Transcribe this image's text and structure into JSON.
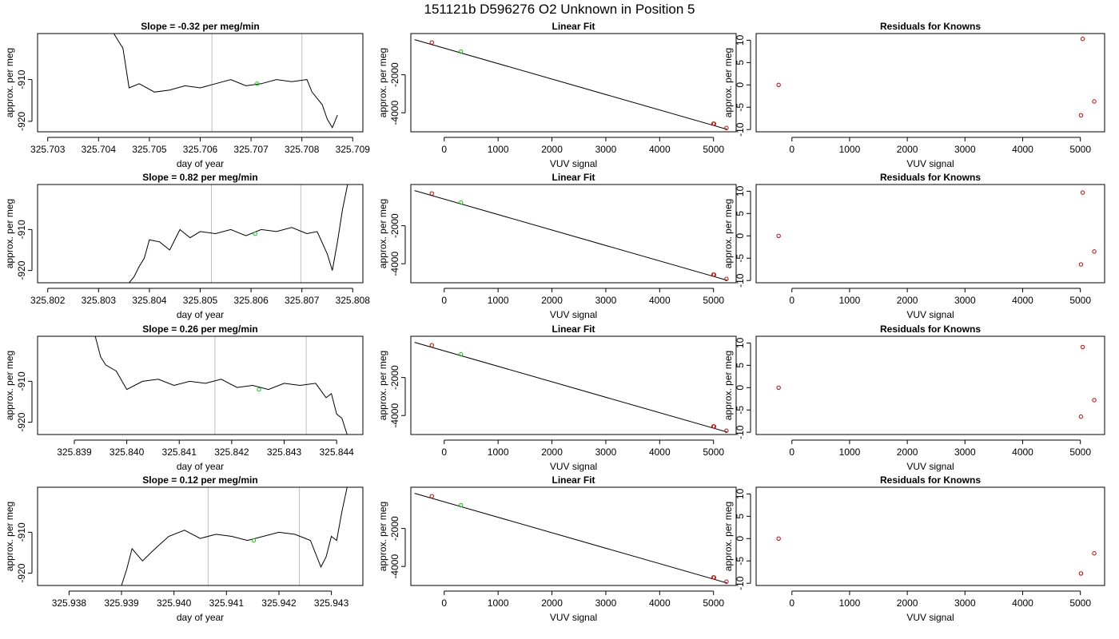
{
  "figure": {
    "title": "151121b      D596276   O2 Unknown in Position  5"
  },
  "colors": {
    "trace": "#000000",
    "unknown_point": "#00cc00",
    "known_point": "#cc0000",
    "vertical_marker": "#bebebe",
    "frame": "#000000"
  },
  "chart_data": [
    {
      "type": "line",
      "panel": "trace-1",
      "title": "Slope =  -0.32  per meg/min",
      "xlabel": "day of year",
      "ylabel": "approx. per meg",
      "xlim": [
        325.7028,
        325.7092
      ],
      "ylim": [
        -922.5,
        -899.0
      ],
      "xticks": [
        325.703,
        325.704,
        325.705,
        325.706,
        325.707,
        325.708,
        325.709
      ],
      "xtick_labels": [
        "325.703",
        "325.704",
        "325.705",
        "325.706",
        "325.707",
        "325.708",
        "325.709"
      ],
      "yticks": [
        -920,
        -910
      ],
      "ytick_labels": [
        "-920",
        "-910"
      ],
      "vlines": [
        325.70623,
        325.708
      ],
      "unknown_point": {
        "x": 325.70712,
        "y": -911.0
      },
      "series": [
        {
          "x": [
            325.7043,
            325.7044,
            325.70448,
            325.7046,
            325.7048,
            325.7051,
            325.7054,
            325.7057,
            325.706,
            325.7063,
            325.7066,
            325.7069,
            325.7072,
            325.7075,
            325.7078,
            325.7081,
            325.7082,
            325.7084,
            325.7085,
            325.7086,
            325.7087
          ],
          "y": [
            -899.0,
            -901.0,
            -902.5,
            -912.0,
            -911.0,
            -913.0,
            -912.5,
            -911.5,
            -912.0,
            -911.0,
            -910.0,
            -911.5,
            -911.0,
            -910.0,
            -910.5,
            -910.0,
            -913.0,
            -916.0,
            -919.5,
            -921.5,
            -918.5
          ]
        }
      ]
    },
    {
      "type": "scatter",
      "panel": "fit-1",
      "title": "Linear Fit",
      "xlabel": "VUV signal",
      "ylabel": "approx. per meg",
      "xlim": [
        -620,
        5420
      ],
      "ylim": [
        -5000,
        170
      ],
      "xticks": [
        0,
        1000,
        2000,
        3000,
        4000,
        5000
      ],
      "xtick_labels": [
        "0",
        "1000",
        "2000",
        "3000",
        "4000",
        "5000"
      ],
      "yticks": [
        -4000,
        -2000
      ],
      "ytick_labels": [
        "-4000",
        "-2000"
      ],
      "fit_line": {
        "x": [
          -550,
          5250
        ],
        "y": [
          -150,
          -4870
        ]
      },
      "known_points": {
        "x": [
          -230,
          5000,
          5010,
          5240
        ],
        "y": [
          -300,
          -4570,
          -4580,
          -4800
        ]
      },
      "unknown_points": {
        "x": [
          310
        ],
        "y": [
          -780
        ]
      }
    },
    {
      "type": "scatter",
      "panel": "resid-1",
      "title": "Residuals for Knowns",
      "xlabel": "VUV signal",
      "ylabel": "approx. per meg",
      "xlim": [
        -620,
        5420
      ],
      "ylim": [
        -10.5,
        11.5
      ],
      "xticks": [
        0,
        1000,
        2000,
        3000,
        4000,
        5000
      ],
      "xtick_labels": [
        "0",
        "1000",
        "2000",
        "3000",
        "4000",
        "5000"
      ],
      "yticks": [
        -10,
        -5,
        0,
        5,
        10
      ],
      "ytick_labels": [
        "-10",
        "-5",
        "0",
        "5",
        "10"
      ],
      "known_points": {
        "x": [
          -230,
          5010,
          5040,
          5240
        ],
        "y": [
          0,
          -6.8,
          10.3,
          -3.7
        ]
      }
    },
    {
      "type": "line",
      "panel": "trace-2",
      "title": "Slope =  0.82  per meg/min",
      "xlabel": "day of year",
      "ylabel": "approx. per meg",
      "xlim": [
        325.8018,
        325.8082
      ],
      "ylim": [
        -923.0,
        -899.0
      ],
      "xticks": [
        325.802,
        325.803,
        325.804,
        325.805,
        325.806,
        325.807,
        325.808
      ],
      "xtick_labels": [
        "325.802",
        "325.803",
        "325.804",
        "325.805",
        "325.806",
        "325.807",
        "325.808"
      ],
      "yticks": [
        -920,
        -910
      ],
      "ytick_labels": [
        "-920",
        "-910"
      ],
      "vlines": [
        325.80522,
        325.80698
      ],
      "unknown_point": {
        "x": 325.80608,
        "y": -911.0
      },
      "series": [
        {
          "x": [
            325.8036,
            325.8037,
            325.8038,
            325.8039,
            325.804,
            325.8042,
            325.8044,
            325.8046,
            325.8048,
            325.805,
            325.8053,
            325.8056,
            325.8059,
            325.8062,
            325.8065,
            325.8068,
            325.8071,
            325.8073,
            325.8075,
            325.8076,
            325.8077,
            325.8078,
            325.8079
          ],
          "y": [
            -923.0,
            -921.5,
            -919.0,
            -917.0,
            -912.5,
            -913.0,
            -915.0,
            -910.0,
            -912.0,
            -910.5,
            -911.0,
            -910.0,
            -911.5,
            -910.0,
            -910.5,
            -909.5,
            -911.0,
            -910.5,
            -916.0,
            -920.0,
            -913.0,
            -905.0,
            -899.0
          ]
        }
      ]
    },
    {
      "type": "scatter",
      "panel": "fit-2",
      "title": "Linear Fit",
      "xlabel": "VUV signal",
      "ylabel": "approx. per meg",
      "xlim": [
        -620,
        5420
      ],
      "ylim": [
        -5000,
        170
      ],
      "xticks": [
        0,
        1000,
        2000,
        3000,
        4000,
        5000
      ],
      "xtick_labels": [
        "0",
        "1000",
        "2000",
        "3000",
        "4000",
        "5000"
      ],
      "yticks": [
        -4000,
        -2000
      ],
      "ytick_labels": [
        "-4000",
        "-2000"
      ],
      "fit_line": {
        "x": [
          -550,
          5250
        ],
        "y": [
          -150,
          -4870
        ]
      },
      "known_points": {
        "x": [
          -230,
          5000,
          5010,
          5240
        ],
        "y": [
          -300,
          -4570,
          -4580,
          -4800
        ]
      },
      "unknown_points": {
        "x": [
          310
        ],
        "y": [
          -780
        ]
      }
    },
    {
      "type": "scatter",
      "panel": "resid-2",
      "title": "Residuals for Knowns",
      "xlabel": "VUV signal",
      "ylabel": "approx. per meg",
      "xlim": [
        -620,
        5420
      ],
      "ylim": [
        -10.5,
        11.5
      ],
      "xticks": [
        0,
        1000,
        2000,
        3000,
        4000,
        5000
      ],
      "xtick_labels": [
        "0",
        "1000",
        "2000",
        "3000",
        "4000",
        "5000"
      ],
      "yticks": [
        -10,
        -5,
        0,
        5,
        10
      ],
      "ytick_labels": [
        "-10",
        "-5",
        "0",
        "5",
        "10"
      ],
      "known_points": {
        "x": [
          -230,
          5010,
          5040,
          5240
        ],
        "y": [
          0,
          -6.4,
          9.7,
          -3.5
        ]
      }
    },
    {
      "type": "line",
      "panel": "trace-3",
      "title": "Slope =  0.26  per meg/min",
      "xlabel": "day of year",
      "ylabel": "approx. per meg",
      "xlim": [
        325.8383,
        325.8445
      ],
      "ylim": [
        -923.0,
        -899.0
      ],
      "xticks": [
        325.839,
        325.84,
        325.841,
        325.842,
        325.843,
        325.844
      ],
      "xtick_labels": [
        "325.839",
        "325.840",
        "325.841",
        "325.842",
        "325.843",
        "325.844"
      ],
      "yticks": [
        -920,
        -910
      ],
      "ytick_labels": [
        "-920",
        "-910"
      ],
      "vlines": [
        325.84168,
        325.84342
      ],
      "unknown_point": {
        "x": 325.84252,
        "y": -912.0
      },
      "series": [
        {
          "x": [
            325.8394,
            325.8395,
            325.8396,
            325.8398,
            325.84,
            325.8403,
            325.8406,
            325.8409,
            325.8412,
            325.8415,
            325.8418,
            325.8421,
            325.8424,
            325.8427,
            325.843,
            325.8433,
            325.8436,
            325.8438,
            325.8439,
            325.844,
            325.8441,
            325.8442
          ],
          "y": [
            -899.0,
            -904.0,
            -906.0,
            -907.5,
            -912.0,
            -910.0,
            -909.5,
            -911.0,
            -910.0,
            -910.5,
            -909.5,
            -911.5,
            -911.0,
            -912.0,
            -910.5,
            -911.0,
            -910.5,
            -914.0,
            -913.0,
            -918.0,
            -919.0,
            -923.0
          ]
        }
      ]
    },
    {
      "type": "scatter",
      "panel": "fit-3",
      "title": "Linear Fit",
      "xlabel": "VUV signal",
      "ylabel": "approx. per meg",
      "xlim": [
        -620,
        5420
      ],
      "ylim": [
        -5000,
        170
      ],
      "xticks": [
        0,
        1000,
        2000,
        3000,
        4000,
        5000
      ],
      "xtick_labels": [
        "0",
        "1000",
        "2000",
        "3000",
        "4000",
        "5000"
      ],
      "yticks": [
        -4000,
        -2000
      ],
      "ytick_labels": [
        "-4000",
        "-2000"
      ],
      "fit_line": {
        "x": [
          -550,
          5250
        ],
        "y": [
          -150,
          -4870
        ]
      },
      "known_points": {
        "x": [
          -230,
          5000,
          5010,
          5240
        ],
        "y": [
          -300,
          -4570,
          -4580,
          -4800
        ]
      },
      "unknown_points": {
        "x": [
          310
        ],
        "y": [
          -780
        ]
      }
    },
    {
      "type": "scatter",
      "panel": "resid-3",
      "title": "Residuals for Knowns",
      "xlabel": "VUV signal",
      "ylabel": "approx. per meg",
      "xlim": [
        -620,
        5420
      ],
      "ylim": [
        -10.5,
        11.5
      ],
      "xticks": [
        0,
        1000,
        2000,
        3000,
        4000,
        5000
      ],
      "xtick_labels": [
        "0",
        "1000",
        "2000",
        "3000",
        "4000",
        "5000"
      ],
      "yticks": [
        -10,
        -5,
        0,
        5,
        10
      ],
      "ytick_labels": [
        "-10",
        "-5",
        "0",
        "5",
        "10"
      ],
      "known_points": {
        "x": [
          -230,
          5010,
          5040,
          5240
        ],
        "y": [
          0,
          -6.5,
          9.1,
          -2.8
        ]
      }
    },
    {
      "type": "line",
      "panel": "trace-4",
      "title": "Slope =  0.12  per meg/min",
      "xlabel": "day of year",
      "ylabel": "approx. per meg",
      "xlim": [
        325.9374,
        325.9436
      ],
      "ylim": [
        -923.0,
        -899.0
      ],
      "xticks": [
        325.938,
        325.939,
        325.94,
        325.941,
        325.942,
        325.943
      ],
      "xtick_labels": [
        "325.938",
        "325.939",
        "325.940",
        "325.941",
        "325.942",
        "325.943"
      ],
      "yticks": [
        -920,
        -910
      ],
      "ytick_labels": [
        "-920",
        "-910"
      ],
      "vlines": [
        325.94065,
        325.94239
      ],
      "unknown_point": {
        "x": 325.94152,
        "y": -912.0
      },
      "series": [
        {
          "x": [
            325.939,
            325.9391,
            325.9392,
            325.9394,
            325.9396,
            325.9399,
            325.9402,
            325.9405,
            325.9408,
            325.9411,
            325.9414,
            325.9417,
            325.942,
            325.9423,
            325.9426,
            325.9428,
            325.9429,
            325.943,
            325.9431,
            325.9432,
            325.9433
          ],
          "y": [
            -923.0,
            -919.0,
            -914.0,
            -917.0,
            -914.5,
            -911.0,
            -909.5,
            -911.5,
            -910.5,
            -911.0,
            -912.0,
            -911.0,
            -910.0,
            -910.5,
            -912.0,
            -918.5,
            -916.0,
            -911.0,
            -912.0,
            -905.0,
            -899.0
          ]
        }
      ]
    },
    {
      "type": "scatter",
      "panel": "fit-4",
      "title": "Linear Fit",
      "xlabel": "VUV signal",
      "ylabel": "approx. per meg",
      "xlim": [
        -620,
        5420
      ],
      "ylim": [
        -5000,
        170
      ],
      "xticks": [
        0,
        1000,
        2000,
        3000,
        4000,
        5000
      ],
      "xtick_labels": [
        "0",
        "1000",
        "2000",
        "3000",
        "4000",
        "5000"
      ],
      "yticks": [
        -4000,
        -2000
      ],
      "ytick_labels": [
        "-4000",
        "-2000"
      ],
      "fit_line": {
        "x": [
          -550,
          5250
        ],
        "y": [
          -150,
          -4870
        ]
      },
      "known_points": {
        "x": [
          -230,
          5000,
          5010,
          5240
        ],
        "y": [
          -300,
          -4570,
          -4580,
          -4800
        ]
      },
      "unknown_points": {
        "x": [
          310
        ],
        "y": [
          -780
        ]
      }
    },
    {
      "type": "scatter",
      "panel": "resid-4",
      "title": "Residuals for Knowns",
      "xlabel": "VUV signal",
      "ylabel": "approx. per meg",
      "xlim": [
        -620,
        5420
      ],
      "ylim": [
        -10.5,
        11.5
      ],
      "xticks": [
        0,
        1000,
        2000,
        3000,
        4000,
        5000
      ],
      "xtick_labels": [
        "0",
        "1000",
        "2000",
        "3000",
        "4000",
        "5000"
      ],
      "yticks": [
        -10,
        -5,
        0,
        5,
        10
      ],
      "ytick_labels": [
        "-10",
        "-5",
        "0",
        "5",
        "10"
      ],
      "known_points": {
        "x": [
          -230,
          5010,
          5240
        ],
        "y": [
          0,
          -7.8,
          -3.3
        ]
      }
    }
  ]
}
